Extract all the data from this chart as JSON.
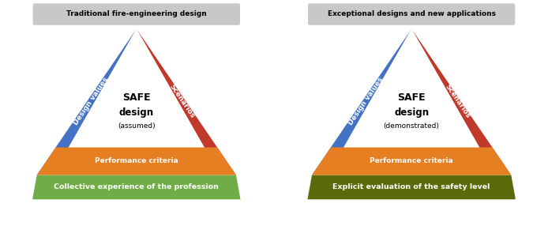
{
  "left_title": "Traditional fire-engineering design",
  "right_title": "Exceptional designs and new applications",
  "left_center_text_line1": "SAFE",
  "left_center_text_line2": "design",
  "left_center_text_line3": "(assumed)",
  "right_center_text_line1": "SAFE",
  "right_center_text_line2": "design",
  "right_center_text_line3": "(demonstrated)",
  "left_label_left": "Design values",
  "left_label_right": "Scenarios",
  "right_label_left": "Design values",
  "right_label_right": "Scenarios",
  "left_bottom_orange": "Performance criteria",
  "right_bottom_orange": "Performance criteria",
  "left_bottom_green": "Collective experience of the profession",
  "right_bottom_green": "Explicit evaluation of the safety level",
  "color_blue": "#4472C4",
  "color_red": "#C0392B",
  "color_orange": "#E67E22",
  "color_green_left": "#70AD47",
  "color_green_right": "#5A6B0A",
  "color_title_box": "#C8C8C8",
  "color_white": "#FFFFFF",
  "color_black": "#000000"
}
